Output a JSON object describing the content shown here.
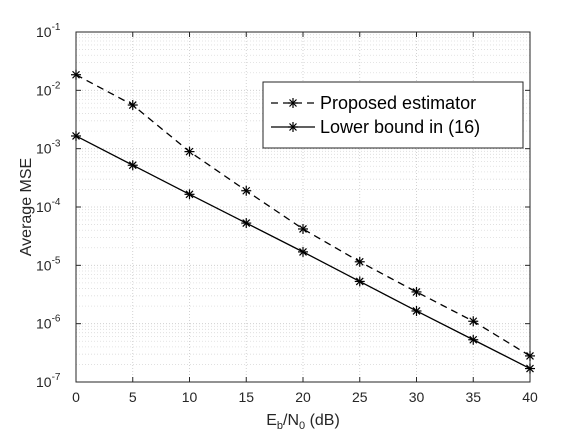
{
  "chart_data": {
    "type": "line",
    "title": "",
    "xlabel": {
      "base": "E",
      "sub1": "b",
      "mid": "/N",
      "sub2": "0",
      "tail": " (dB)"
    },
    "ylabel": "Average MSE",
    "xlim": [
      0,
      40
    ],
    "ylim": [
      1e-07,
      0.1
    ],
    "yscale": "log",
    "grid": "major and minor, dotted",
    "legend_position": "upper-right",
    "x_ticks": [
      "0",
      "5",
      "10",
      "15",
      "20",
      "25",
      "30",
      "35",
      "40"
    ],
    "y_ticks": [
      {
        "base": "10",
        "exp": "-7"
      },
      {
        "base": "10",
        "exp": "-6"
      },
      {
        "base": "10",
        "exp": "-5"
      },
      {
        "base": "10",
        "exp": "-4"
      },
      {
        "base": "10",
        "exp": "-3"
      },
      {
        "base": "10",
        "exp": "-2"
      },
      {
        "base": "10",
        "exp": "-1"
      }
    ],
    "x": [
      0,
      5,
      10,
      15,
      20,
      25,
      30,
      35,
      40
    ],
    "series": [
      {
        "name": "Proposed estimator",
        "line_style": "dashed",
        "marker": "asterisk",
        "color": "#000000",
        "values": [
          0.0185,
          0.0056,
          0.00089,
          0.00019,
          4.2e-05,
          1.15e-05,
          3.5e-06,
          1.1e-06,
          2.8e-07
        ]
      },
      {
        "name": "Lower bound in (16)",
        "line_style": "solid",
        "marker": "asterisk",
        "color": "#000000",
        "values": [
          0.00165,
          0.00052,
          0.000165,
          5.3e-05,
          1.7e-05,
          5.3e-06,
          1.65e-06,
          5.3e-07,
          1.7e-07
        ]
      }
    ]
  }
}
